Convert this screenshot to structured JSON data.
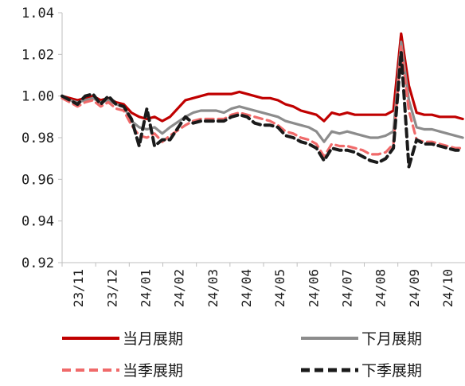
{
  "chart_data": {
    "type": "line",
    "title": "",
    "xlabel": "",
    "ylabel": "",
    "ylim": [
      0.92,
      1.04
    ],
    "yticks": [
      "0.92",
      "0.94",
      "0.96",
      "0.98",
      "1.00",
      "1.02",
      "1.04"
    ],
    "xticks": [
      "23/11",
      "23/12",
      "24/01",
      "24/02",
      "24/03",
      "24/04",
      "24/05",
      "24/06",
      "24/07",
      "24/08",
      "24/09",
      "24/10"
    ],
    "x": [
      "2023-11-01",
      "2023-11-08",
      "2023-11-15",
      "2023-11-22",
      "2023-11-29",
      "2023-12-06",
      "2023-12-13",
      "2023-12-20",
      "2023-12-27",
      "2024-01-03",
      "2024-01-10",
      "2024-01-17",
      "2024-01-24",
      "2024-01-31",
      "2024-02-07",
      "2024-02-21",
      "2024-02-28",
      "2024-03-06",
      "2024-03-13",
      "2024-03-20",
      "2024-03-27",
      "2024-04-03",
      "2024-04-10",
      "2024-04-17",
      "2024-04-24",
      "2024-05-01",
      "2024-05-08",
      "2024-05-15",
      "2024-05-22",
      "2024-05-29",
      "2024-06-05",
      "2024-06-12",
      "2024-06-19",
      "2024-06-26",
      "2024-07-03",
      "2024-07-10",
      "2024-07-17",
      "2024-07-24",
      "2024-07-31",
      "2024-08-07",
      "2024-08-14",
      "2024-08-21",
      "2024-08-28",
      "2024-09-04",
      "2024-09-11",
      "2024-09-18",
      "2024-09-25",
      "2024-10-02",
      "2024-10-09",
      "2024-10-16",
      "2024-10-23",
      "2024-10-30"
    ],
    "series": [
      {
        "name": "当月展期",
        "color": "#c00000",
        "dash": "solid",
        "values": [
          1.0,
          0.999,
          0.998,
          0.999,
          1.0,
          0.998,
          0.999,
          0.997,
          0.996,
          0.992,
          0.99,
          0.989,
          0.99,
          0.988,
          0.99,
          0.998,
          0.999,
          1.0,
          1.001,
          1.001,
          1.001,
          1.001,
          1.002,
          1.001,
          1.0,
          0.999,
          0.999,
          0.998,
          0.996,
          0.995,
          0.993,
          0.992,
          0.991,
          0.988,
          0.992,
          0.991,
          0.992,
          0.991,
          0.991,
          0.991,
          0.991,
          0.991,
          0.993,
          1.03,
          1.005,
          0.992,
          0.991,
          0.991,
          0.99,
          0.99,
          0.99,
          0.989
        ]
      },
      {
        "name": "下月展期",
        "color": "#8c8c8c",
        "dash": "solid",
        "values": [
          1.0,
          0.998,
          0.997,
          0.998,
          0.999,
          0.997,
          0.998,
          0.996,
          0.995,
          0.988,
          0.985,
          0.984,
          0.985,
          0.982,
          0.985,
          0.99,
          0.992,
          0.993,
          0.993,
          0.993,
          0.992,
          0.994,
          0.995,
          0.994,
          0.993,
          0.992,
          0.991,
          0.99,
          0.988,
          0.987,
          0.986,
          0.985,
          0.983,
          0.978,
          0.983,
          0.982,
          0.983,
          0.982,
          0.981,
          0.98,
          0.98,
          0.981,
          0.983,
          1.026,
          0.998,
          0.985,
          0.984,
          0.984,
          0.983,
          0.982,
          0.981,
          0.98
        ]
      },
      {
        "name": "当季展期",
        "color": "#f06a6a",
        "dash": "dashed",
        "values": [
          0.999,
          0.997,
          0.995,
          0.997,
          0.998,
          0.995,
          0.997,
          0.994,
          0.993,
          0.986,
          0.981,
          0.98,
          0.982,
          0.978,
          0.981,
          0.986,
          0.988,
          0.989,
          0.989,
          0.989,
          0.989,
          0.991,
          0.992,
          0.991,
          0.99,
          0.989,
          0.988,
          0.986,
          0.983,
          0.982,
          0.98,
          0.979,
          0.977,
          0.971,
          0.977,
          0.976,
          0.976,
          0.975,
          0.974,
          0.972,
          0.972,
          0.973,
          0.977,
          1.024,
          0.993,
          0.979,
          0.978,
          0.978,
          0.977,
          0.976,
          0.975,
          0.975
        ]
      },
      {
        "name": "下季展期",
        "color": "#1a1a1a",
        "dash": "dashed",
        "values": [
          1.0,
          0.998,
          0.996,
          1.0,
          1.001,
          0.996,
          1.0,
          0.996,
          0.995,
          0.989,
          0.976,
          0.994,
          0.976,
          0.979,
          0.979,
          0.99,
          0.987,
          0.988,
          0.988,
          0.988,
          0.988,
          0.99,
          0.991,
          0.99,
          0.987,
          0.986,
          0.986,
          0.985,
          0.981,
          0.98,
          0.978,
          0.977,
          0.975,
          0.969,
          0.975,
          0.974,
          0.974,
          0.973,
          0.971,
          0.969,
          0.968,
          0.97,
          0.975,
          1.021,
          0.966,
          0.979,
          0.977,
          0.977,
          0.976,
          0.975,
          0.974,
          0.974
        ]
      }
    ],
    "legend_position": "bottom",
    "grid": false
  }
}
